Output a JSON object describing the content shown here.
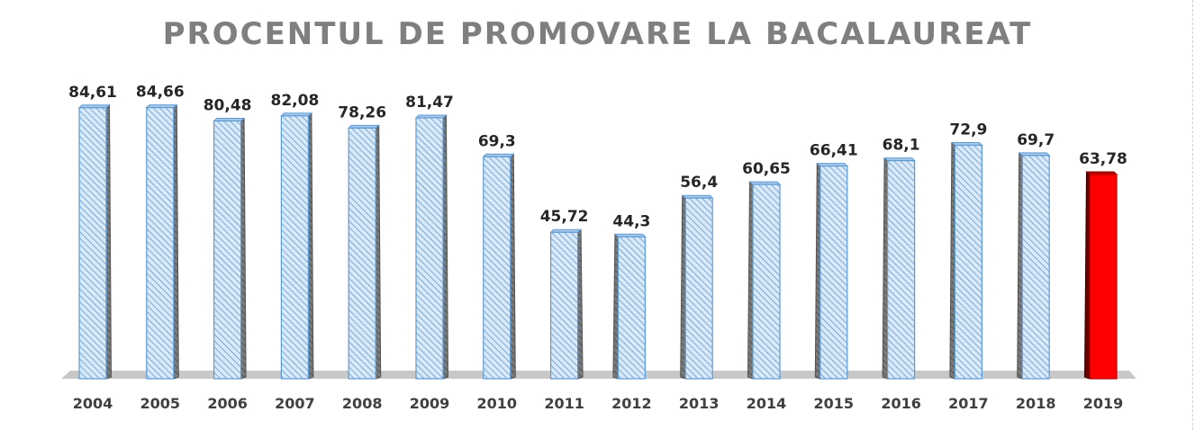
{
  "chart_data": {
    "type": "bar",
    "title": "PROCENTUL DE PROMOVARE LA BACALAUREAT",
    "xlabel": "",
    "ylabel": "",
    "ylim": [
      0,
      90
    ],
    "grid": false,
    "legend": "none",
    "categories": [
      "2004",
      "2005",
      "2006",
      "2007",
      "2008",
      "2009",
      "2010",
      "2011",
      "2012",
      "2013",
      "2014",
      "2015",
      "2016",
      "2017",
      "2018",
      "2019"
    ],
    "values": [
      84.61,
      84.66,
      80.48,
      82.08,
      78.26,
      81.47,
      69.3,
      45.72,
      44.3,
      56.4,
      60.65,
      66.41,
      68.1,
      72.9,
      69.7,
      63.78
    ],
    "value_labels": [
      "84,61",
      "84,66",
      "80,48",
      "82,08",
      "78,26",
      "81,47",
      "69,3",
      "45,72",
      "44,3",
      "56,4",
      "60,65",
      "66,41",
      "68,1",
      "72,9",
      "69,7",
      "63,78"
    ],
    "highlight_index": 15,
    "colors": {
      "bar_fill": "#dbe9f7",
      "bar_hatch": "#5b9bd5",
      "bar_edge": "#5b9bd5",
      "bar_side": "#6a6a6a",
      "highlight_fill": "#ff0000",
      "highlight_side": "#6b0000",
      "floor": "#c8c8c8",
      "title": "#7f7f7f"
    }
  }
}
